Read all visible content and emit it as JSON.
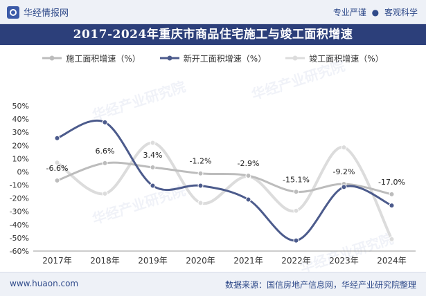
{
  "header": {
    "brand": "华经情报网",
    "tagline_left": "专业严谨",
    "tagline_dot": "●",
    "tagline_right": "客观科学"
  },
  "watermark_text": "华经产业研究院",
  "chart_data": {
    "type": "line",
    "title": "2017-2024年重庆市商品住宅施工与竣工面积增速",
    "categories": [
      "2017年",
      "2018年",
      "2019年",
      "2020年",
      "2021年",
      "2022年",
      "2023年",
      "2024年"
    ],
    "ylim": [
      -60,
      50
    ],
    "yticks": [
      50,
      40,
      30,
      20,
      10,
      0,
      -10,
      -20,
      -30,
      -40,
      -50,
      -60
    ],
    "ytick_labels": [
      "50%",
      "40%",
      "30%",
      "20%",
      "10%",
      "0%",
      "-10%",
      "-20%",
      "-30%",
      "-40%",
      "-50%",
      "-60%"
    ],
    "series": [
      {
        "name": "施工面积增速（%）",
        "color": "#bcbcbc",
        "values": [
          -6.6,
          6.6,
          3.4,
          -1.2,
          -2.9,
          -15.1,
          -9.2,
          -17.0
        ],
        "labels": [
          "-6.6%",
          "6.6%",
          "3.4%",
          "-1.2%",
          "-2.9%",
          "-15.1%",
          "-9.2%",
          "-17.0%"
        ]
      },
      {
        "name": "新开工面积增速（%）",
        "color": "#4c5b8c",
        "values": [
          25.5,
          37.5,
          -10.5,
          -10.5,
          -21.0,
          -52.0,
          -11.5,
          -25.5
        ]
      },
      {
        "name": "竣工面积增速（%）",
        "color": "#dcdcdc",
        "values": [
          7.0,
          -16.5,
          22.0,
          -23.5,
          -3.5,
          -29.5,
          18.5,
          -51.0
        ]
      }
    ]
  },
  "footer": {
    "url": "www.huaon.com",
    "source": "数据来源：国信房地产信息网，华经产业研究院整理"
  }
}
